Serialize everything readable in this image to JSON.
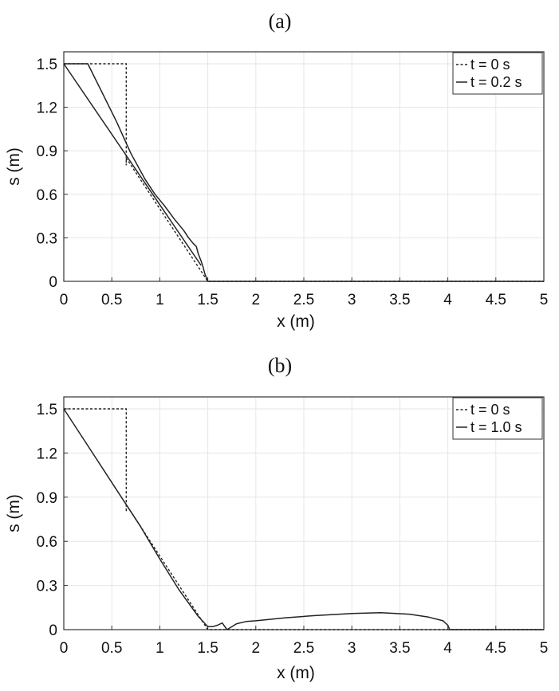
{
  "chart_data": [
    {
      "type": "line",
      "title": "(a)",
      "xlabel": "x (m)",
      "ylabel": "s (m)",
      "xlim": [
        0,
        5
      ],
      "ylim": [
        0,
        1.5
      ],
      "xticks": [
        0,
        0.5,
        1,
        1.5,
        2,
        2.5,
        3,
        3.5,
        4,
        4.5,
        5
      ],
      "xtick_labels": [
        "0",
        "0.5",
        "1",
        "1.5",
        "2",
        "2.5",
        "3",
        "3.5",
        "4",
        "4.5",
        "5"
      ],
      "yticks": [
        0,
        0.3,
        0.6,
        0.9,
        1.2,
        1.5
      ],
      "ytick_labels": [
        "0",
        "0.3",
        "0.6",
        "0.9",
        "1.2",
        "1.5"
      ],
      "grid": true,
      "legend_position": "top-right",
      "series": [
        {
          "name": "t = 0 s",
          "style": "dashed",
          "x": [
            0,
            0.65,
            0.65,
            0.65,
            1.5,
            5
          ],
          "y": [
            1.5,
            1.5,
            0.8,
            0.85,
            0,
            0
          ]
        },
        {
          "name": "t = 0.2 s",
          "style": "solid",
          "x": [
            0,
            0.25,
            0.4,
            0.55,
            0.7,
            0.85,
            0.95,
            1.05,
            1.15,
            1.25,
            1.3,
            1.35,
            1.38,
            1.4,
            1.43,
            1.45,
            1.47,
            1.5,
            1.5,
            2,
            3,
            4,
            5
          ],
          "y": [
            1.5,
            1.5,
            1.3,
            1.1,
            0.88,
            0.7,
            0.6,
            0.52,
            0.43,
            0.35,
            0.3,
            0.26,
            0.24,
            0.19,
            0.14,
            0.1,
            0.05,
            0.0,
            0.0,
            0,
            0,
            0,
            0
          ]
        },
        {
          "name": "",
          "style": "solid",
          "x": [
            0,
            1.43
          ],
          "y": [
            1.5,
            0.11
          ]
        }
      ]
    },
    {
      "type": "line",
      "title": "(b)",
      "xlabel": "x (m)",
      "ylabel": "s (m)",
      "xlim": [
        0,
        5
      ],
      "ylim": [
        0,
        1.5
      ],
      "xticks": [
        0,
        0.5,
        1,
        1.5,
        2,
        2.5,
        3,
        3.5,
        4,
        4.5,
        5
      ],
      "xtick_labels": [
        "0",
        "0.5",
        "1",
        "1.5",
        "2",
        "2.5",
        "3",
        "3.5",
        "4",
        "4.5",
        "5"
      ],
      "yticks": [
        0,
        0.3,
        0.6,
        0.9,
        1.2,
        1.5
      ],
      "ytick_labels": [
        "0",
        "0.3",
        "0.6",
        "0.9",
        "1.2",
        "1.5"
      ],
      "grid": true,
      "legend_position": "top-right",
      "series": [
        {
          "name": "t = 0 s",
          "style": "dashed",
          "x": [
            0,
            0.65,
            0.65,
            0.65,
            1.5,
            5
          ],
          "y": [
            1.5,
            1.5,
            0.8,
            0.85,
            0,
            0
          ]
        },
        {
          "name": "t = 1.0 s",
          "style": "solid",
          "x": [
            0,
            0.3,
            0.6,
            0.8,
            1.0,
            1.2,
            1.4,
            1.5,
            1.55,
            1.6,
            1.65,
            1.7,
            1.8,
            1.9,
            2.0,
            2.3,
            2.6,
            3.0,
            3.3,
            3.6,
            3.8,
            3.95,
            4.0,
            4.02,
            5
          ],
          "y": [
            1.5,
            1.2,
            0.9,
            0.7,
            0.48,
            0.27,
            0.09,
            0.02,
            0.02,
            0.03,
            0.045,
            0.0,
            0.04,
            0.055,
            0.06,
            0.08,
            0.095,
            0.11,
            0.115,
            0.105,
            0.085,
            0.06,
            0.03,
            0.0,
            0
          ]
        }
      ]
    }
  ]
}
